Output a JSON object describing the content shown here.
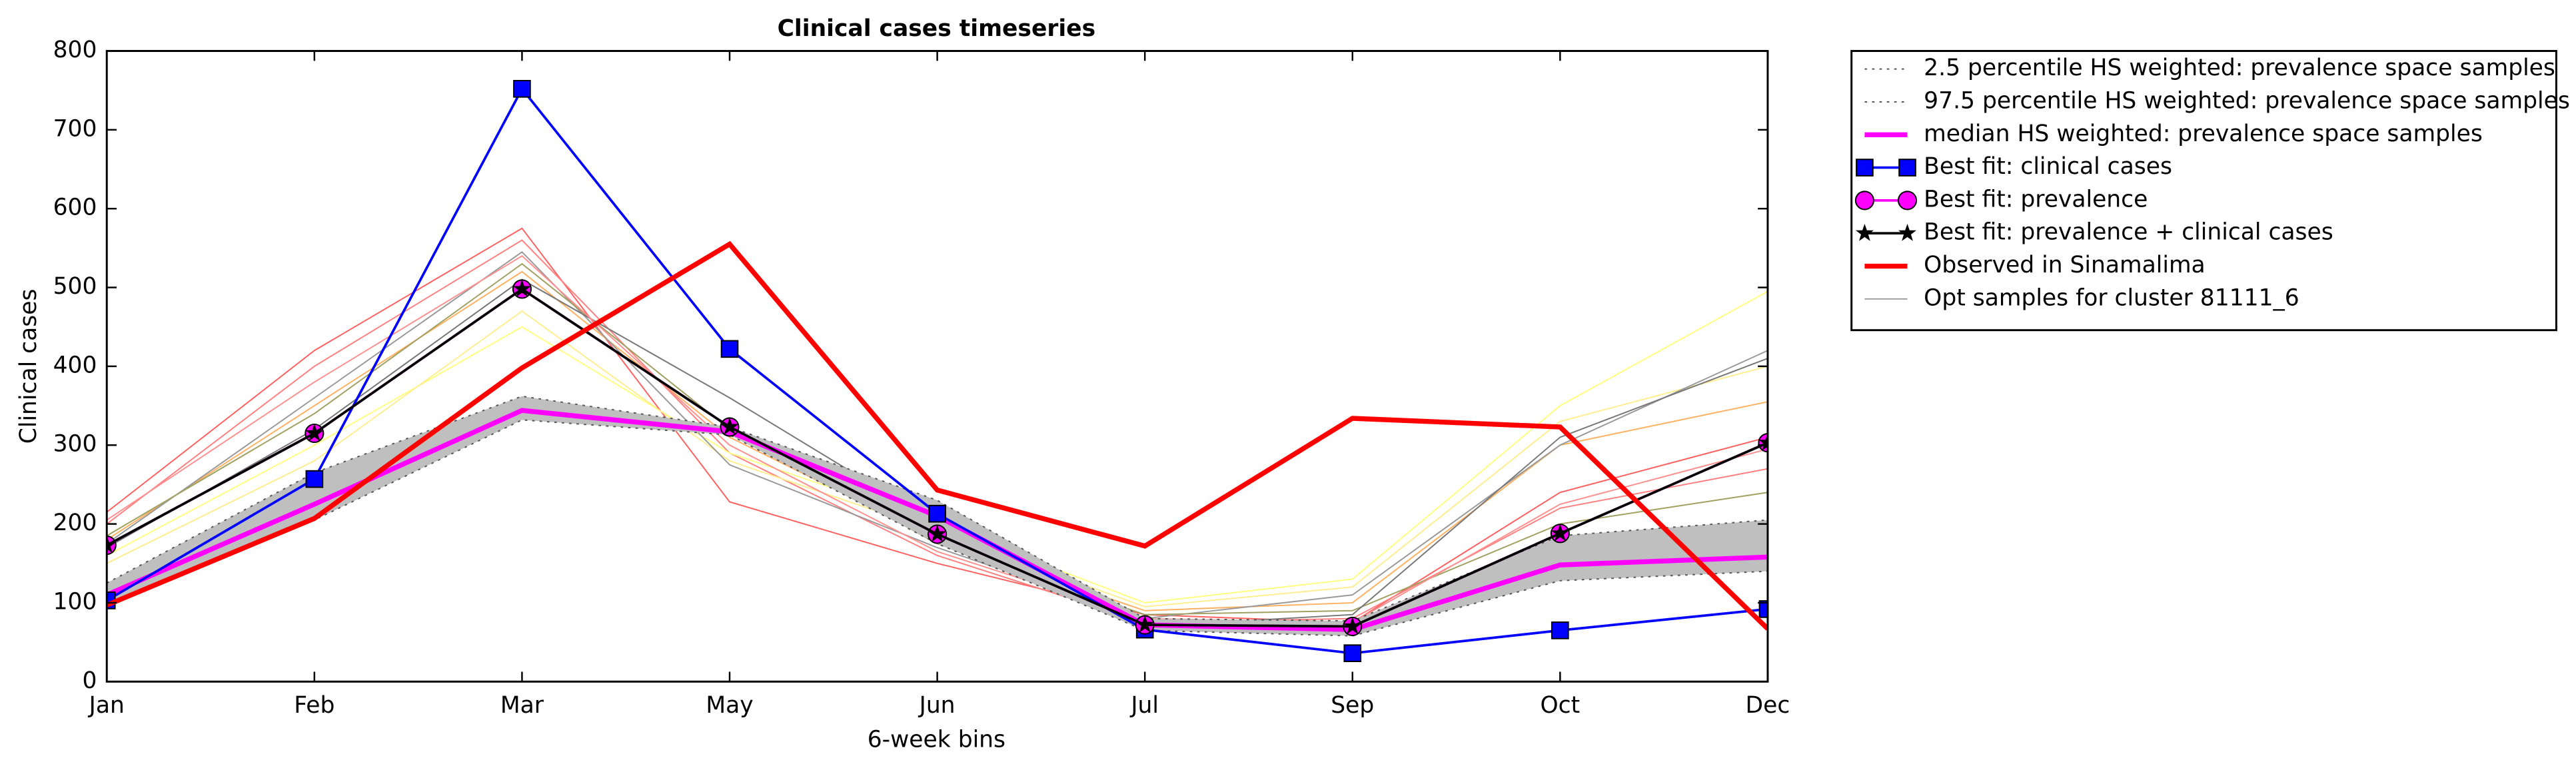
{
  "chart_data": {
    "type": "line",
    "title": "Clinical cases timeseries",
    "x_label": "6-week bins",
    "y_label": "Clinical cases",
    "categories": [
      "Jan",
      "Feb",
      "Mar",
      "May",
      "Jun",
      "Jul",
      "Sep",
      "Oct",
      "Dec"
    ],
    "ylim": [
      0,
      800
    ],
    "yticks": [
      0,
      100,
      200,
      300,
      400,
      500,
      600,
      700,
      800
    ],
    "legend": "outside upper right",
    "band": true,
    "series": [
      {
        "name": "2.5 percentile HS weighted: prevalence space samples",
        "color": "#555555",
        "linestyle": "dotted",
        "values": [
          95,
          205,
          332,
          313,
          175,
          65,
          58,
          128,
          140
        ]
      },
      {
        "name": "97.5 percentile HS weighted: prevalence space samples",
        "color": "#555555",
        "linestyle": "dotted",
        "values": [
          125,
          265,
          362,
          323,
          230,
          80,
          77,
          185,
          205
        ]
      },
      {
        "name": "median HS weighted: prevalence space samples",
        "color": "#ff00ff",
        "linestyle": "thick",
        "values": [
          110,
          225,
          344,
          317,
          210,
          72,
          66,
          148,
          158
        ]
      },
      {
        "name": "Best fit: clinical cases",
        "color": "#0000ff",
        "marker": "square",
        "values": [
          103,
          257,
          752,
          422,
          213,
          66,
          36,
          65,
          92
        ]
      },
      {
        "name": "Best fit: prevalence",
        "color": "#ff00ff",
        "marker": "circle",
        "values": [
          173,
          315,
          498,
          323,
          187,
          72,
          70,
          188,
          303
        ]
      },
      {
        "name": "Best fit: prevalence + clinical cases",
        "color": "#000000",
        "marker": "star",
        "values": [
          173,
          315,
          498,
          323,
          187,
          72,
          70,
          188,
          303
        ]
      },
      {
        "name": "Observed in Sinamalima",
        "color": "#ff0000",
        "linestyle": "thick",
        "values": [
          97,
          207,
          398,
          555,
          243,
          172,
          334,
          323,
          67
        ]
      },
      {
        "name": "Opt samples for cluster 81111_6",
        "color": "#999999",
        "linestyle": "thin",
        "colors": [
          "#ff6060",
          "#ff8080",
          "#ffb060",
          "#ffff80",
          "#ffee90",
          "#999999",
          "#a0a060",
          "#777777",
          "#ff9090"
        ],
        "values": [
          [
            215,
            420,
            575,
            228,
            150,
            85,
            75,
            240,
            310
          ],
          [
            200,
            400,
            560,
            290,
            160,
            75,
            80,
            220,
            270
          ],
          [
            180,
            350,
            520,
            310,
            180,
            90,
            100,
            300,
            355
          ],
          [
            160,
            300,
            450,
            290,
            200,
            100,
            130,
            350,
            495
          ],
          [
            150,
            280,
            470,
            280,
            190,
            95,
            120,
            330,
            400
          ],
          [
            175,
            360,
            545,
            275,
            170,
            80,
            110,
            300,
            420
          ],
          [
            185,
            340,
            530,
            320,
            175,
            85,
            90,
            200,
            240
          ],
          [
            170,
            320,
            510,
            360,
            200,
            70,
            85,
            310,
            410
          ],
          [
            205,
            380,
            540,
            300,
            165,
            80,
            75,
            225,
            295
          ]
        ]
      }
    ]
  }
}
